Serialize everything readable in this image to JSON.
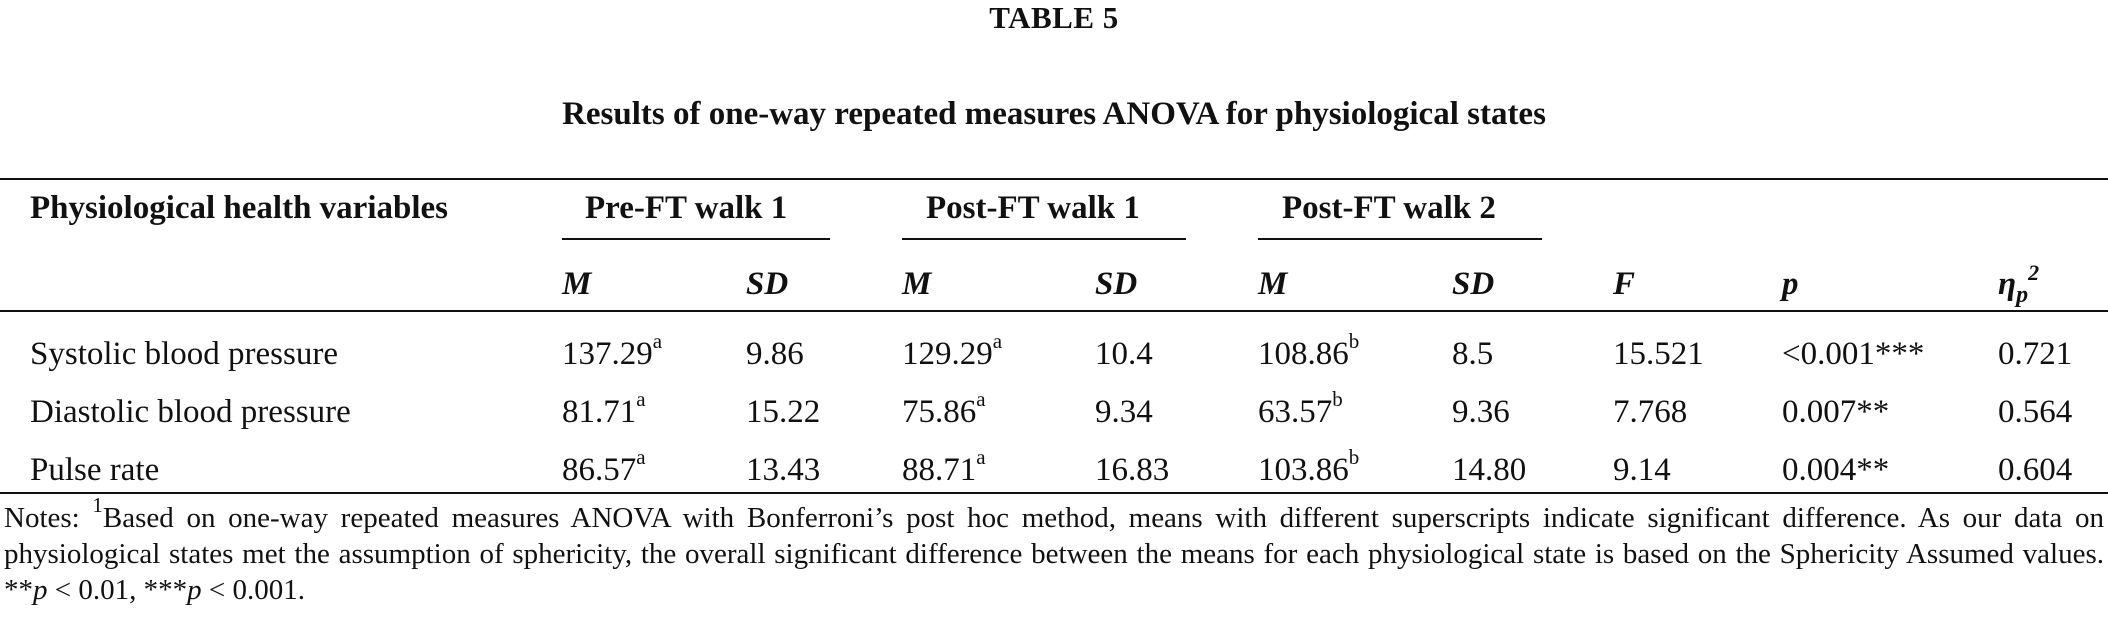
{
  "table_label": "TABLE 5",
  "caption": "Results of one-way repeated measures ANOVA for physiological states",
  "header": {
    "variable_label": "Physiological health variables",
    "groups": [
      "Pre-FT walk 1",
      "Post-FT walk 1",
      "Post-FT walk 2"
    ],
    "subheaders": {
      "m": "M",
      "sd": "SD",
      "f": "F",
      "p": "p",
      "eta": "η",
      "eta_sub": "p",
      "eta_sup": "2"
    }
  },
  "rows": [
    {
      "variable": "Systolic blood pressure",
      "pre_m": "137.29",
      "pre_m_sup": "a",
      "pre_sd": "9.86",
      "post1_m": "129.29",
      "post1_m_sup": "a",
      "post1_sd": "10.4",
      "post2_m": "108.86",
      "post2_m_sup": "b",
      "post2_sd": "8.5",
      "f": "15.521",
      "p": "<0.001***",
      "eta": "0.721"
    },
    {
      "variable": "Diastolic blood pressure",
      "pre_m": "81.71",
      "pre_m_sup": "a",
      "pre_sd": "15.22",
      "post1_m": "75.86",
      "post1_m_sup": "a",
      "post1_sd": "9.34",
      "post2_m": "63.57",
      "post2_m_sup": "b",
      "post2_sd": "9.36",
      "f": "7.768",
      "p": "0.007**",
      "eta": "0.564"
    },
    {
      "variable": "Pulse rate",
      "pre_m": "86.57",
      "pre_m_sup": "a",
      "pre_sd": "13.43",
      "post1_m": "88.71",
      "post1_m_sup": "a",
      "post1_sd": "16.83",
      "post2_m": "103.86",
      "post2_m_sup": "b",
      "post2_sd": "14.80",
      "f": "9.14",
      "p": "0.004**",
      "eta": "0.604"
    }
  ],
  "notes": {
    "prefix": "Notes: ",
    "footnote_mark": "1",
    "text": "Based on one-way repeated measures ANOVA with Bonferroni’s post hoc method, means with different superscripts indicate significant difference. As our data on physiological states met the assumption of sphericity, the overall significant difference between the means for each physiological state is based on the Sphericity Assumed values. ",
    "sig1_stars": "**",
    "sig1_p": "p",
    "sig1_rest": " < 0.01, ",
    "sig2_stars": "***",
    "sig2_p": "p",
    "sig2_rest": " < 0.001."
  }
}
